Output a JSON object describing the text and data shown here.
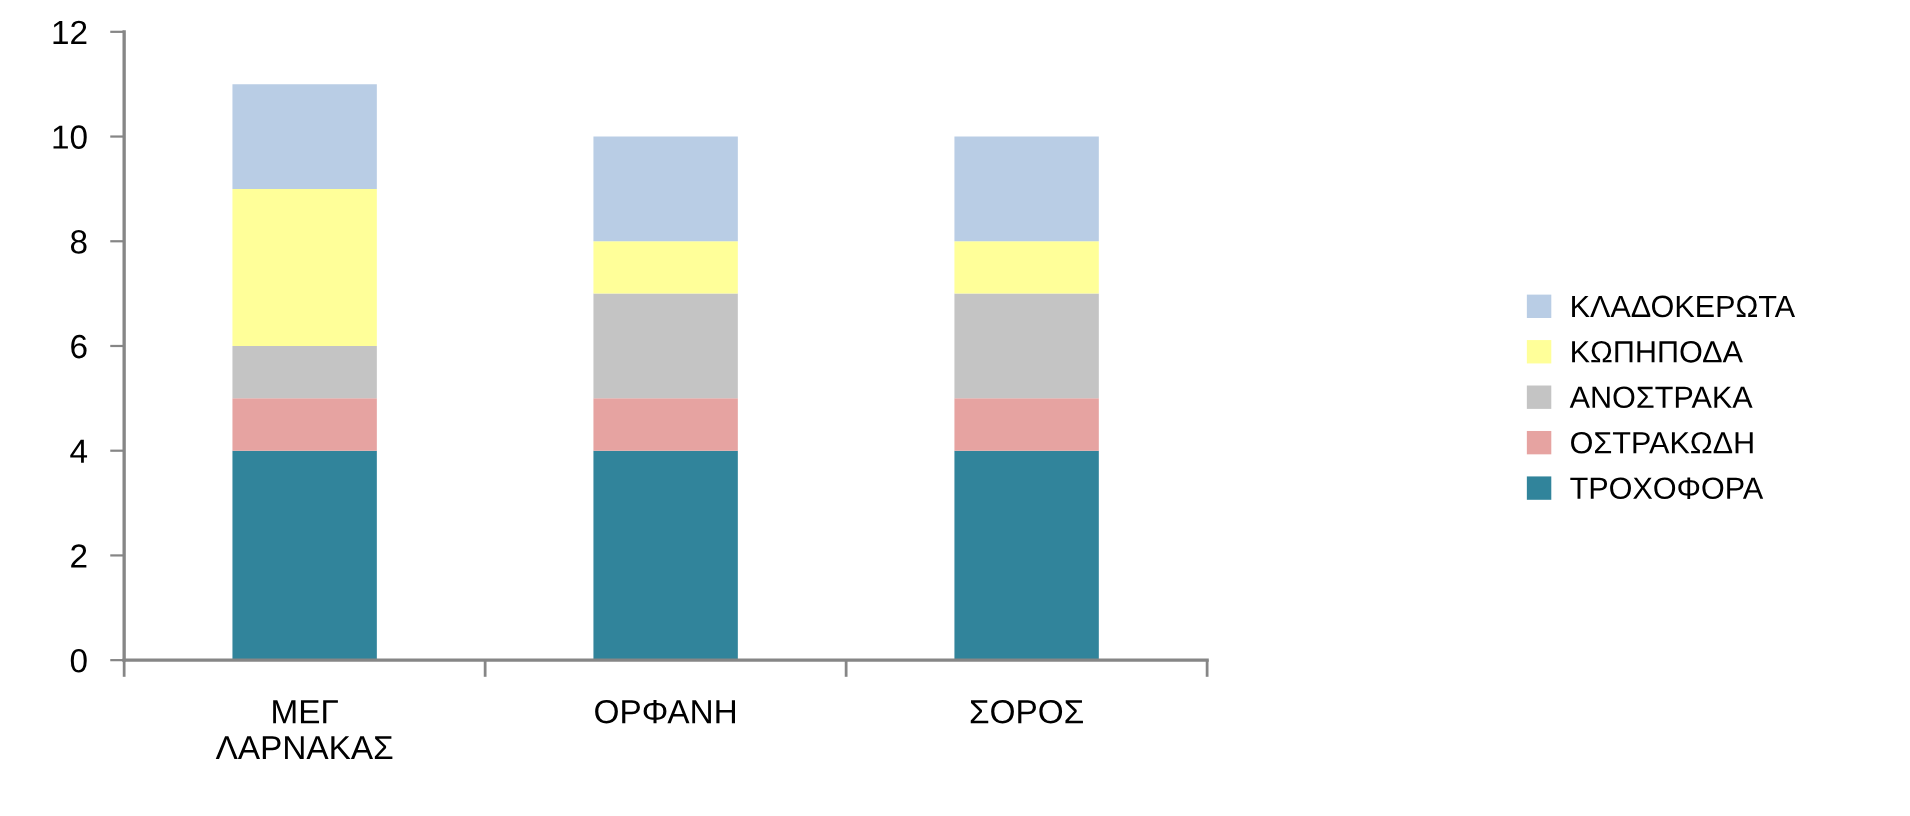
{
  "chart_data": {
    "type": "bar",
    "stacked": true,
    "categories": [
      "ΜΕΓ ΛΑΡΝΑΚΑΣ",
      "ΟΡΦΑΝΗ",
      "ΣΟΡΟΣ"
    ],
    "series": [
      {
        "name": "ΤΡΟΧΟΦΟΡΑ",
        "color": "#31849b",
        "values": [
          4,
          4,
          4
        ]
      },
      {
        "name": "ΟΣΤΡΑΚΩΔΗ",
        "color": "#e6a3a1",
        "values": [
          1,
          1,
          1
        ]
      },
      {
        "name": "ΑΝΟΣΤΡΑΚΑ",
        "color": "#c4c4c4",
        "values": [
          1,
          2,
          2
        ]
      },
      {
        "name": "ΚΩΠΗΠΟΔΑ",
        "color": "#ffff99",
        "values": [
          3,
          1,
          1
        ]
      },
      {
        "name": "ΚΛΑΔΟΚΕΡΩΤΑ",
        "color": "#b9cde5",
        "values": [
          2,
          2,
          2
        ]
      }
    ],
    "ylim": [
      0,
      12
    ],
    "yticks": [
      0,
      2,
      4,
      6,
      8,
      10,
      12
    ],
    "grid": false,
    "legend": "right"
  }
}
